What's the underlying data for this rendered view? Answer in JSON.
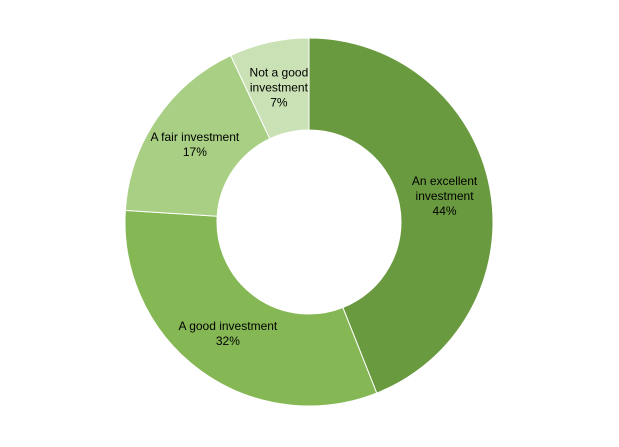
{
  "chart_data": {
    "type": "pie",
    "donut": true,
    "title": "",
    "start": "top",
    "direction": "clockwise",
    "legend": "none",
    "slices": [
      {
        "label_lines": [
          "An excellent",
          "investment"
        ],
        "value_label": "44%",
        "value": 44,
        "color": "#6a9a3f"
      },
      {
        "label_lines": [
          "A good investment"
        ],
        "value_label": "32%",
        "value": 32,
        "color": "#85b855"
      },
      {
        "label_lines": [
          "A fair investment"
        ],
        "value_label": "17%",
        "value": 17,
        "color": "#a8cf83"
      },
      {
        "label_lines": [
          "Not a good",
          "investment"
        ],
        "value_label": "7%",
        "value": 7,
        "color": "#c9e1b4"
      }
    ]
  }
}
